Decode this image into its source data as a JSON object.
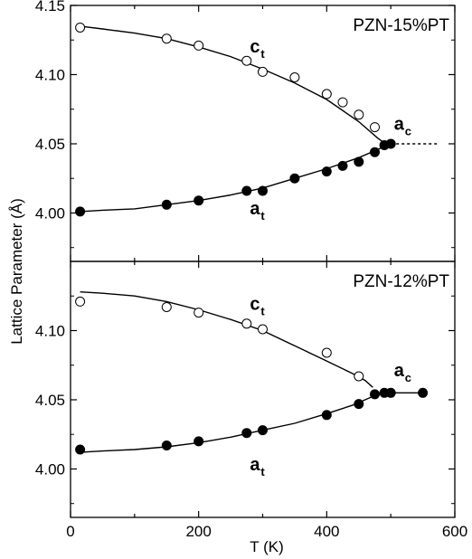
{
  "chart_data": {
    "type": "scatter",
    "xlabel": "T (K)",
    "ylabel": "Lattice Parameter (Å)",
    "xlim": [
      0,
      600
    ],
    "x_ticks": [
      "0",
      "200",
      "400",
      "600"
    ],
    "panels": [
      {
        "title": "PZN-15%PT",
        "ylim": [
          3.965,
          4.15
        ],
        "y_ticks": [
          "4.00",
          "4.05",
          "4.10",
          "4.15"
        ],
        "y_tick_values": [
          4.0,
          4.05,
          4.1,
          4.15
        ],
        "curve_labels": [
          {
            "main": "c",
            "sub": "t",
            "x": 280,
            "y": 4.116
          },
          {
            "main": "a",
            "sub": "t",
            "x": 280,
            "y": 3.999
          },
          {
            "main": "a",
            "sub": "c",
            "x": 505,
            "y": 4.06
          }
        ],
        "series": [
          {
            "label": "c_t",
            "marker": "open",
            "x": [
              15,
              150,
              200,
              275,
              300,
              350,
              400,
              425,
              450,
              475
            ],
            "y": [
              4.134,
              4.126,
              4.121,
              4.11,
              4.102,
              4.098,
              4.086,
              4.08,
              4.071,
              4.062
            ]
          },
          {
            "label": "a_t / a_c",
            "marker": "filled",
            "x": [
              15,
              150,
              200,
              275,
              300,
              350,
              400,
              425,
              450,
              475,
              490,
              500
            ],
            "y": [
              4.001,
              4.006,
              4.009,
              4.016,
              4.016,
              4.025,
              4.03,
              4.034,
              4.037,
              4.044,
              4.049,
              4.05
            ]
          }
        ],
        "fit_curves": [
          {
            "label": "c_t fit",
            "style": "solid",
            "x": [
              15,
              50,
              100,
              150,
              200,
              250,
              300,
              350,
              400,
              450,
              480,
              495
            ],
            "y": [
              4.135,
              4.133,
              4.13,
              4.126,
              4.12,
              4.113,
              4.104,
              4.094,
              4.082,
              4.066,
              4.054,
              4.049
            ]
          },
          {
            "label": "a_t fit",
            "style": "solid",
            "x": [
              15,
              50,
              100,
              150,
              200,
              250,
              300,
              350,
              400,
              450,
              480,
              495
            ],
            "y": [
              4.001,
              4.002,
              4.003,
              4.006,
              4.009,
              4.013,
              4.018,
              4.025,
              4.032,
              4.04,
              4.046,
              4.049
            ]
          },
          {
            "label": "a_c extension",
            "style": "dotted",
            "x": [
              500,
              575
            ],
            "y": [
              4.05,
              4.05
            ]
          }
        ]
      },
      {
        "title": "PZN-12%PT",
        "ylim": [
          3.965,
          4.15
        ],
        "y_ticks": [
          "4.00",
          "4.05",
          "4.10"
        ],
        "y_tick_values": [
          4.0,
          4.05,
          4.1
        ],
        "curve_labels": [
          {
            "main": "c",
            "sub": "t",
            "x": 280,
            "y": 4.115
          },
          {
            "main": "a",
            "sub": "t",
            "x": 280,
            "y": 3.999
          },
          {
            "main": "a",
            "sub": "c",
            "x": 505,
            "y": 4.067
          }
        ],
        "series": [
          {
            "label": "c_t",
            "marker": "open",
            "x": [
              15,
              150,
              200,
              275,
              300,
              400,
              450
            ],
            "y": [
              4.121,
              4.117,
              4.113,
              4.105,
              4.101,
              4.084,
              4.067
            ]
          },
          {
            "label": "a_t / a_c",
            "marker": "filled",
            "x": [
              15,
              150,
              200,
              275,
              300,
              400,
              450,
              475,
              490,
              500,
              550
            ],
            "y": [
              4.014,
              4.017,
              4.02,
              4.026,
              4.028,
              4.039,
              4.047,
              4.054,
              4.055,
              4.055,
              4.055
            ]
          }
        ],
        "fit_curves": [
          {
            "label": "c_t fit",
            "style": "solid",
            "x": [
              15,
              50,
              100,
              150,
              200,
              250,
              300,
              350,
              400,
              440,
              460,
              472
            ],
            "y": [
              4.128,
              4.127,
              4.125,
              4.121,
              4.115,
              4.108,
              4.1,
              4.089,
              4.078,
              4.069,
              4.064,
              4.059
            ]
          },
          {
            "label": "a_t fit",
            "style": "solid",
            "x": [
              15,
              50,
              100,
              150,
              200,
              250,
              300,
              350,
              400,
              440,
              470,
              480
            ],
            "y": [
              4.012,
              4.013,
              4.014,
              4.016,
              4.019,
              4.023,
              4.028,
              4.033,
              4.04,
              4.046,
              4.052,
              4.054
            ]
          },
          {
            "label": "a_c fit",
            "style": "solid",
            "x": [
              480,
              550
            ],
            "y": [
              4.055,
              4.055
            ]
          }
        ]
      }
    ]
  }
}
